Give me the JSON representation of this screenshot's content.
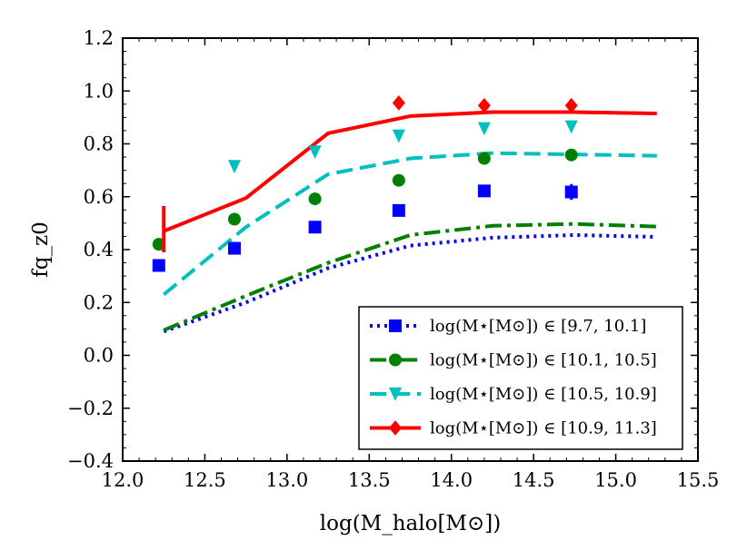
{
  "chart_data": {
    "type": "line",
    "title": "",
    "xlabel": "log(M_halo[M⊙])",
    "ylabel": "fq_z0",
    "xlim": [
      12.0,
      15.5
    ],
    "ylim": [
      -0.4,
      1.2
    ],
    "xticks": [
      "12.0",
      "12.5",
      "13.0",
      "13.5",
      "14.0",
      "14.5",
      "15.0",
      "15.5"
    ],
    "yticks": [
      "−0.4",
      "−0.2",
      "0.0",
      "0.2",
      "0.4",
      "0.6",
      "0.8",
      "1.0",
      "1.2"
    ],
    "legend_position": "lower-right",
    "series": [
      {
        "name": "log(M⋆[M⊙]) ∈ [9.7, 10.1]",
        "color": "#0000ff",
        "line_style": "dotted",
        "marker": "square",
        "line": {
          "x": [
            12.25,
            12.75,
            13.25,
            13.75,
            14.25,
            14.75,
            15.25
          ],
          "y": [
            0.09,
            0.2,
            0.33,
            0.415,
            0.445,
            0.455,
            0.448
          ]
        },
        "points": {
          "x": [
            12.22,
            12.68,
            13.17,
            13.68,
            14.2,
            14.73
          ],
          "y": [
            0.34,
            0.405,
            0.485,
            0.548,
            0.622,
            0.618
          ],
          "err": [
            0,
            0,
            0,
            0,
            0,
            0.03
          ]
        }
      },
      {
        "name": "log(M⋆[M⊙]) ∈ [10.1, 10.5]",
        "color": "#008000",
        "line_style": "dashdot",
        "marker": "circle",
        "line": {
          "x": [
            12.25,
            12.75,
            13.25,
            13.75,
            14.25,
            14.75,
            15.25
          ],
          "y": [
            0.095,
            0.225,
            0.35,
            0.455,
            0.49,
            0.497,
            0.487
          ]
        },
        "points": {
          "x": [
            12.22,
            12.68,
            13.17,
            13.68,
            14.2,
            14.73
          ],
          "y": [
            0.42,
            0.515,
            0.592,
            0.662,
            0.745,
            0.758
          ],
          "err": [
            0,
            0,
            0,
            0,
            0,
            0
          ]
        }
      },
      {
        "name": "log(M⋆[M⊙]) ∈ [10.5, 10.9]",
        "color": "#00bfbf",
        "line_style": "dashed",
        "marker": "triangle-down",
        "line": {
          "x": [
            12.25,
            12.75,
            13.25,
            13.75,
            14.25,
            14.75,
            15.25
          ],
          "y": [
            0.23,
            0.485,
            0.685,
            0.745,
            0.765,
            0.76,
            0.755
          ]
        },
        "points": {
          "x": [
            12.68,
            13.17,
            13.68,
            14.2,
            14.73
          ],
          "y": [
            0.715,
            0.77,
            0.83,
            0.858,
            0.865
          ],
          "err": [
            0.02,
            0,
            0,
            0,
            0
          ]
        }
      },
      {
        "name": "log(M⋆[M⊙]) ∈ [10.9, 11.3]",
        "color": "#ff0000",
        "line_style": "solid",
        "marker": "diamond",
        "line": {
          "x": [
            12.25,
            12.75,
            13.25,
            13.75,
            14.25,
            14.75,
            15.25
          ],
          "y": [
            0.47,
            0.595,
            0.84,
            0.905,
            0.92,
            0.92,
            0.915
          ]
        },
        "points": {
          "x": [
            13.68,
            14.2,
            14.73
          ],
          "y": [
            0.955,
            0.945,
            0.945
          ],
          "err": [
            0,
            0,
            0
          ]
        },
        "errorbar_only": {
          "x": 12.25,
          "y": 0.47,
          "lo": 0.39,
          "hi": 0.565
        }
      }
    ]
  }
}
